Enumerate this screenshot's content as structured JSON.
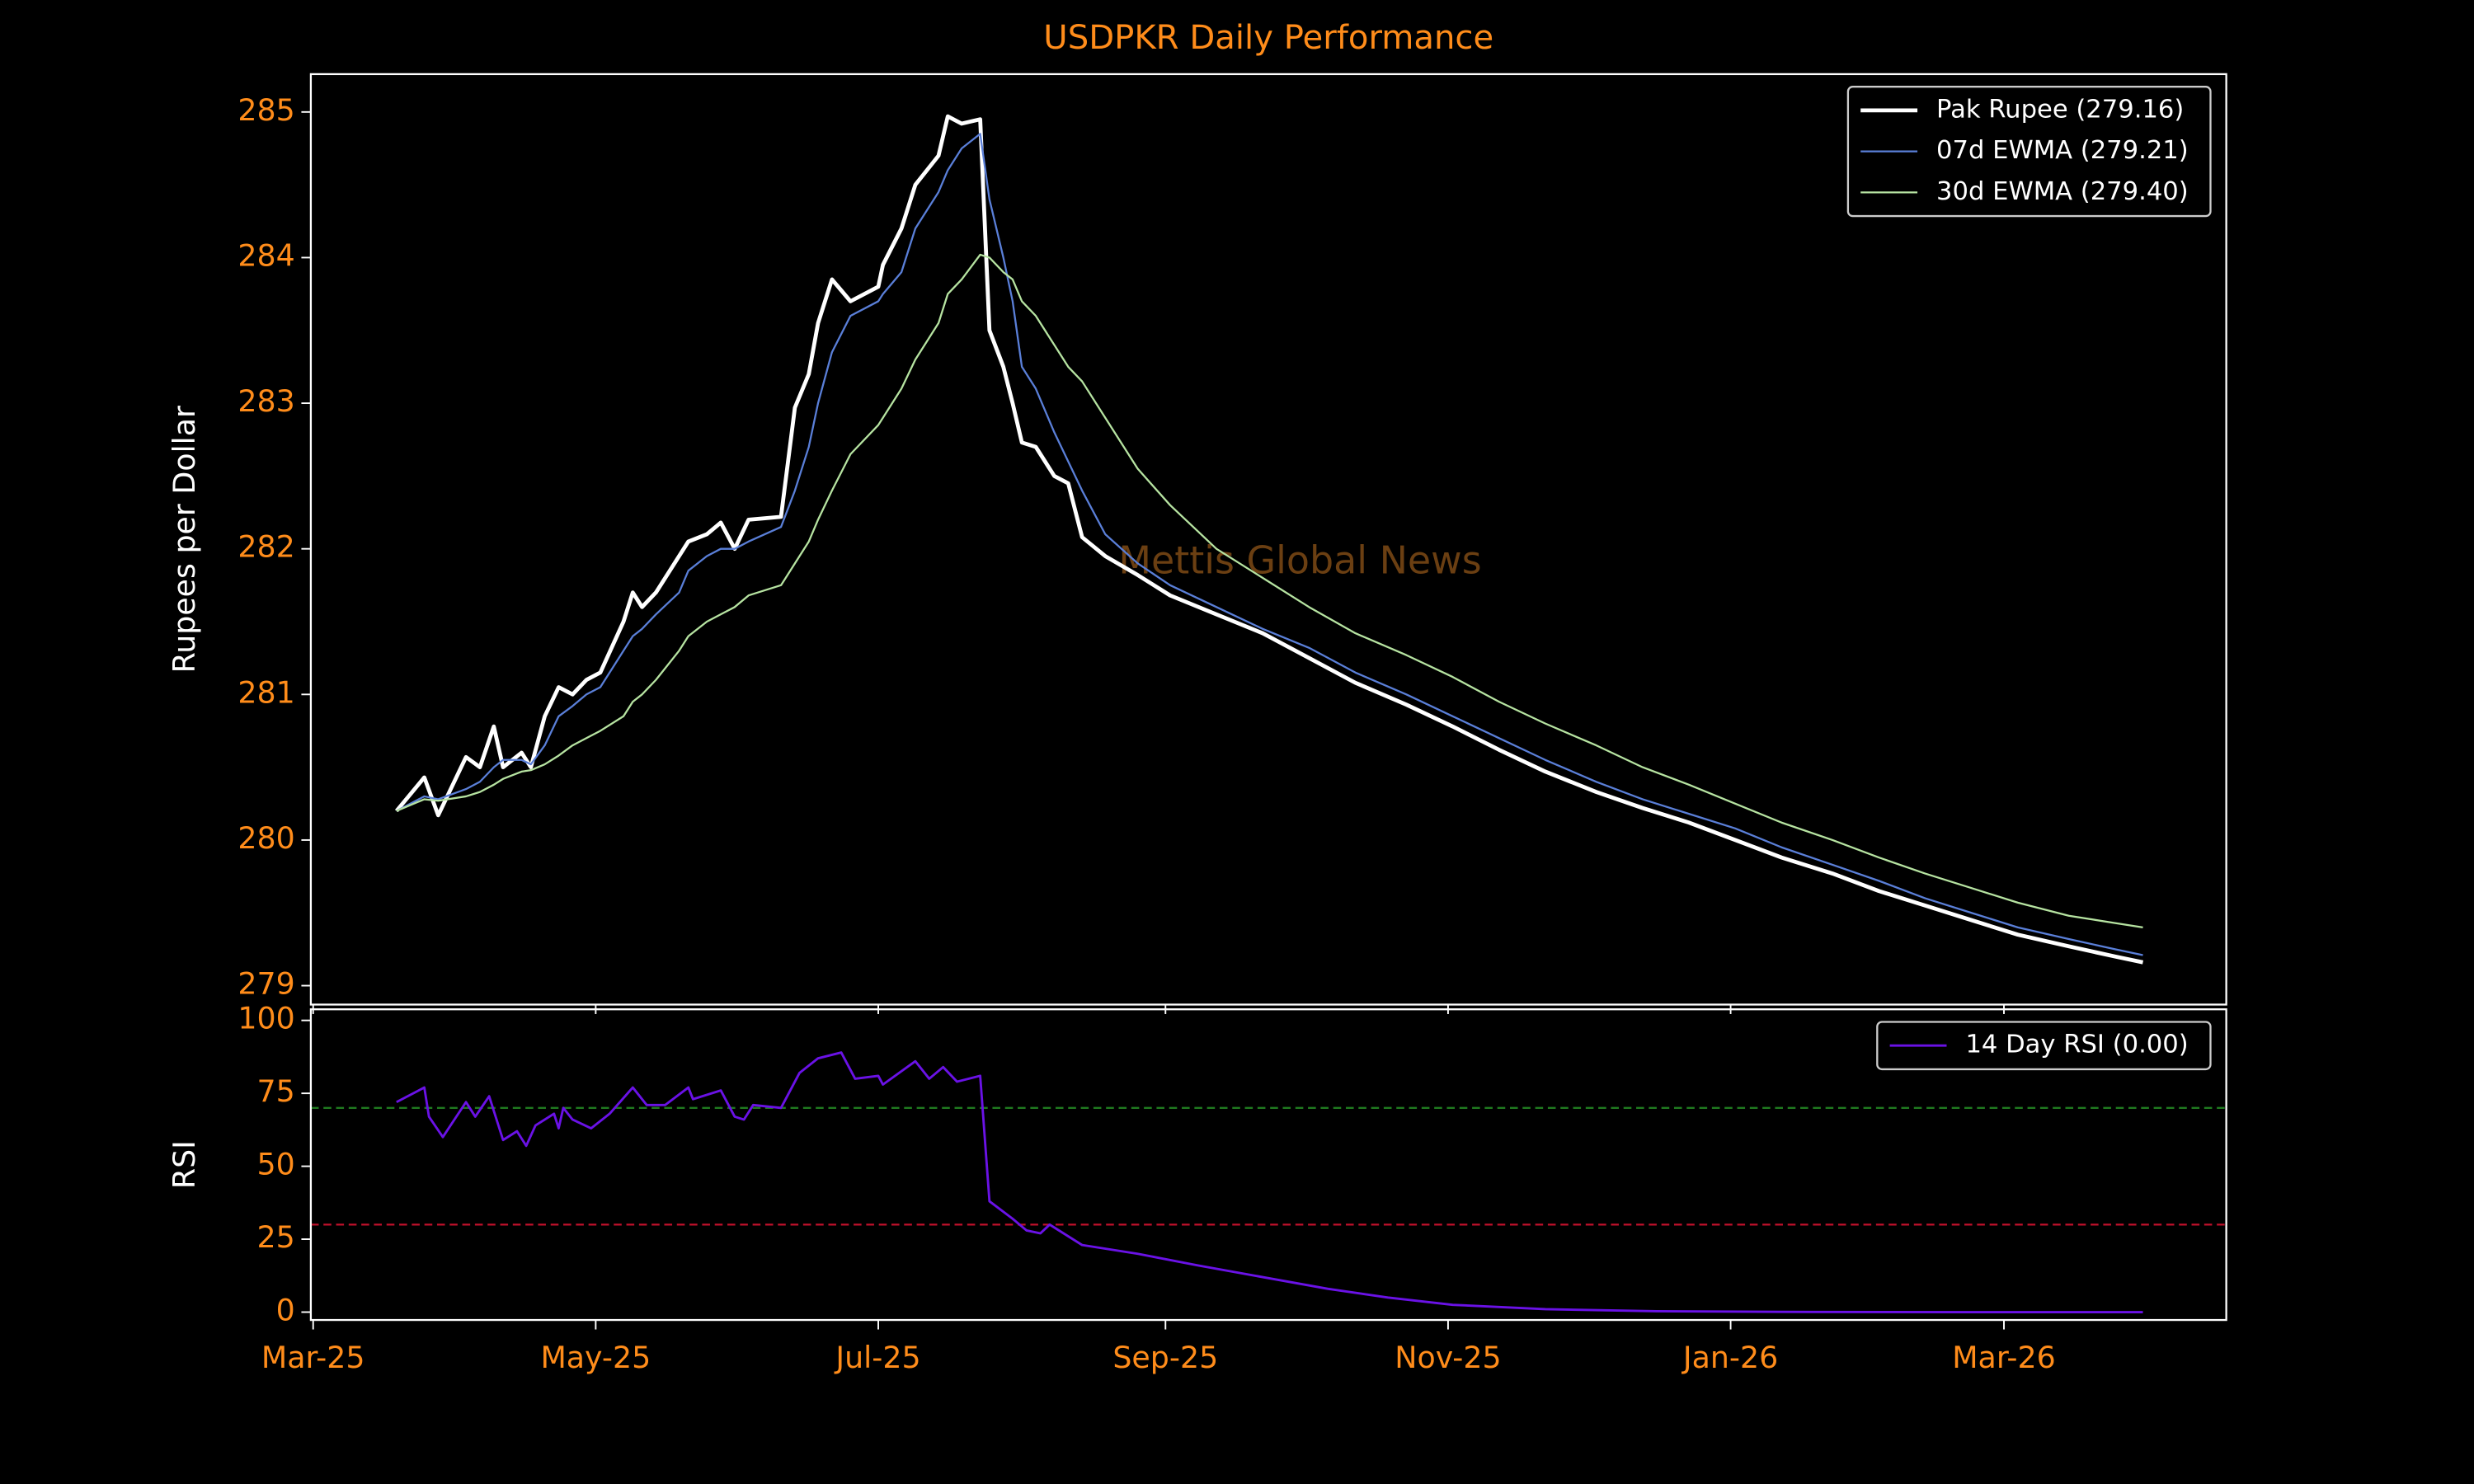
{
  "chart_data": [
    {
      "type": "line",
      "title": "USDPKR Daily Performance",
      "ylabel": "Rupees per Dollar",
      "watermark": "Mettis Global News",
      "x": [
        18,
        24,
        27,
        33,
        36,
        39,
        41,
        45,
        47,
        50,
        53,
        56,
        59,
        62,
        67,
        69,
        71,
        74,
        79,
        81,
        85,
        88,
        91,
        94,
        101,
        104,
        107,
        109,
        112,
        116,
        122,
        123,
        127,
        130,
        135,
        137,
        140,
        144,
        146,
        149,
        151,
        153,
        156,
        160,
        163,
        166,
        171,
        178,
        185,
        195,
        205,
        215,
        225,
        236,
        246,
        256,
        266,
        277,
        287,
        297,
        307,
        317,
        328,
        338,
        348,
        358,
        368,
        379,
        389,
        395
      ],
      "series": [
        {
          "name": "Pak Rupee (279.16)",
          "color": "#ffffff",
          "width": 2.5,
          "values": [
            280.2,
            280.43,
            280.17,
            280.57,
            280.5,
            280.78,
            280.5,
            280.6,
            280.5,
            280.85,
            281.05,
            281.0,
            281.1,
            281.15,
            281.5,
            281.7,
            281.6,
            281.7,
            281.95,
            282.05,
            282.1,
            282.18,
            282.0,
            282.2,
            282.22,
            282.97,
            283.2,
            283.55,
            283.85,
            283.7,
            283.8,
            283.95,
            284.2,
            284.5,
            284.7,
            284.97,
            284.92,
            284.95,
            283.5,
            283.25,
            283.0,
            282.73,
            282.7,
            282.5,
            282.45,
            282.08,
            281.95,
            281.82,
            281.68,
            281.55,
            281.42,
            281.25,
            281.08,
            280.93,
            280.78,
            280.62,
            280.47,
            280.33,
            280.22,
            280.12,
            280.0,
            279.88,
            279.77,
            279.65,
            279.55,
            279.45,
            279.35,
            279.27,
            279.2,
            279.16
          ]
        },
        {
          "name": "07d EWMA (279.21)",
          "color": "#5a7fd8",
          "width": 1.2,
          "values": [
            280.2,
            280.3,
            280.28,
            280.35,
            280.4,
            280.5,
            280.55,
            280.55,
            280.52,
            280.65,
            280.85,
            280.92,
            281.0,
            281.05,
            281.3,
            281.4,
            281.45,
            281.55,
            281.7,
            281.85,
            281.95,
            282.0,
            282.0,
            282.05,
            282.15,
            282.4,
            282.7,
            283.0,
            283.35,
            283.6,
            283.7,
            283.75,
            283.9,
            284.2,
            284.45,
            284.6,
            284.75,
            284.85,
            284.4,
            284.0,
            283.7,
            283.25,
            283.1,
            282.8,
            282.6,
            282.4,
            282.1,
            281.9,
            281.75,
            281.6,
            281.45,
            281.32,
            281.15,
            281.0,
            280.85,
            280.7,
            280.55,
            280.4,
            280.28,
            280.18,
            280.08,
            279.95,
            279.83,
            279.72,
            279.6,
            279.5,
            279.4,
            279.32,
            279.25,
            279.21
          ]
        },
        {
          "name": "30d EWMA (279.40)",
          "color": "#b6e3a1",
          "width": 1.2,
          "values": [
            280.2,
            280.28,
            280.27,
            280.3,
            280.33,
            280.38,
            280.42,
            280.47,
            280.48,
            280.52,
            280.58,
            280.65,
            280.7,
            280.75,
            280.85,
            280.95,
            281.0,
            281.1,
            281.3,
            281.4,
            281.5,
            281.55,
            281.6,
            281.68,
            281.75,
            281.9,
            282.05,
            282.2,
            282.4,
            282.65,
            282.85,
            282.9,
            283.1,
            283.3,
            283.55,
            283.75,
            283.85,
            284.02,
            284.0,
            283.9,
            283.85,
            283.7,
            283.6,
            283.4,
            283.25,
            283.15,
            282.9,
            282.55,
            282.3,
            282.0,
            281.8,
            281.6,
            281.42,
            281.27,
            281.12,
            280.95,
            280.8,
            280.65,
            280.5,
            280.38,
            280.25,
            280.12,
            280.0,
            279.88,
            279.77,
            279.67,
            279.57,
            279.48,
            279.43,
            279.4
          ]
        }
      ],
      "xlim": [
        -0.5,
        413
      ],
      "xticks": [
        0,
        61,
        122,
        184,
        245,
        306,
        365
      ],
      "ylim": [
        278.87,
        285.26
      ],
      "yticks": [
        279,
        280,
        281,
        282,
        283,
        284,
        285
      ],
      "legend": "upper right"
    },
    {
      "type": "line",
      "ylabel": "RSI",
      "x": [
        18,
        24,
        25,
        28,
        33,
        35,
        38,
        41,
        44,
        46,
        48,
        52,
        53,
        54,
        56,
        60,
        64,
        69,
        72,
        76,
        81,
        82,
        88,
        91,
        93,
        95,
        101,
        105,
        109,
        114,
        117,
        122,
        123,
        130,
        133,
        136,
        139,
        144,
        146,
        151,
        154,
        157,
        159,
        166,
        178,
        191,
        205,
        219,
        232,
        246,
        266,
        290,
        324,
        358,
        395
      ],
      "series": [
        {
          "name": "14 Day RSI (0.00)",
          "color": "#6a12e6",
          "width": 1.5,
          "values": [
            72,
            77,
            67,
            60,
            72,
            67,
            74,
            59,
            62,
            57,
            64,
            68,
            63,
            70,
            66,
            63,
            68,
            77,
            71,
            71,
            77,
            73,
            76,
            67,
            66,
            71,
            70,
            82,
            87,
            89,
            80,
            81,
            78,
            86,
            80,
            84,
            79,
            81,
            38,
            32,
            28,
            27,
            30,
            23,
            20,
            16,
            12,
            8,
            5,
            2.5,
            1,
            0.3,
            0.05,
            0,
            0
          ]
        }
      ],
      "hlines": [
        {
          "value": 70,
          "color": "#1f7a1f"
        },
        {
          "value": 30,
          "color": "#c0112b"
        }
      ],
      "xlim": [
        -0.5,
        413
      ],
      "xticks": [
        {
          "value": 0,
          "label": "Mar-25"
        },
        {
          "value": 61,
          "label": "May-25"
        },
        {
          "value": 122,
          "label": "Jul-25"
        },
        {
          "value": 184,
          "label": "Sep-25"
        },
        {
          "value": 245,
          "label": "Nov-25"
        },
        {
          "value": 306,
          "label": "Jan-26"
        },
        {
          "value": 365,
          "label": "Mar-26"
        }
      ],
      "ylim": [
        -2.7,
        103.8
      ],
      "yticks": [
        0,
        25,
        50,
        75,
        100
      ],
      "legend": "upper right"
    }
  ]
}
